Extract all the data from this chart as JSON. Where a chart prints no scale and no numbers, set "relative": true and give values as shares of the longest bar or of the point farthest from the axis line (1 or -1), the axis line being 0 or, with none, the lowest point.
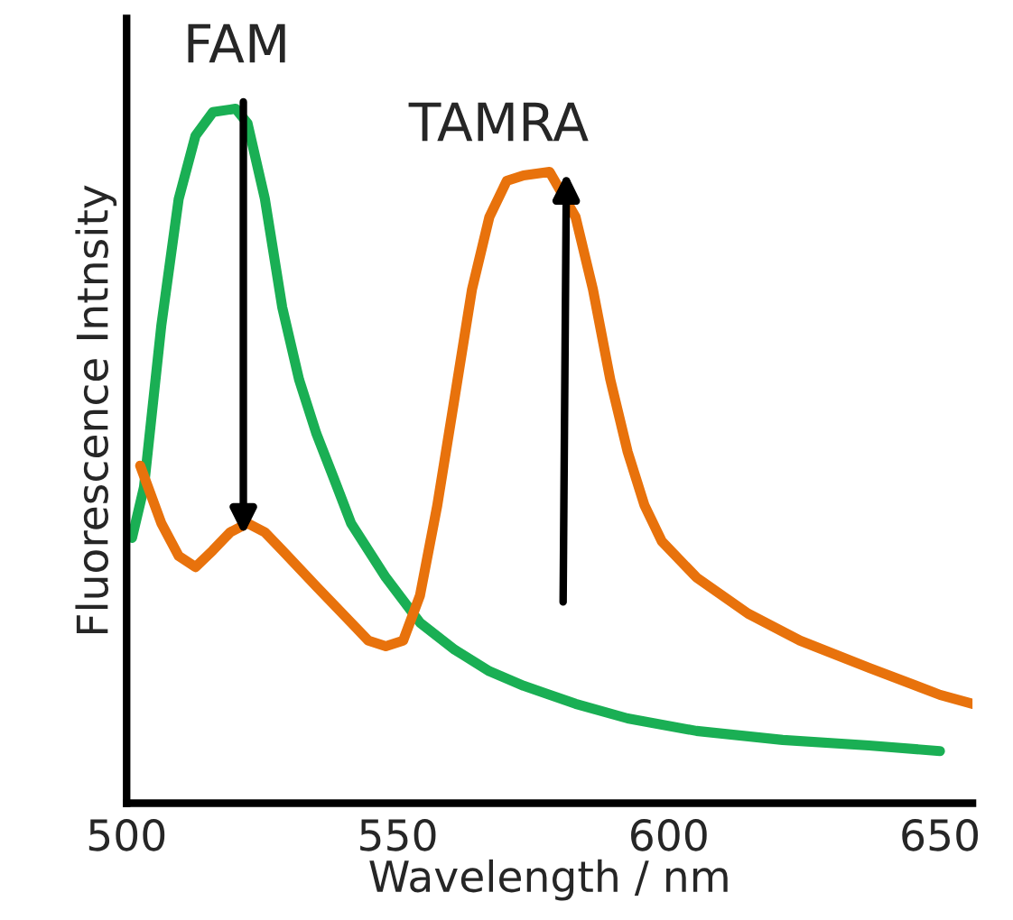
{
  "chart_data": {
    "type": "line",
    "xlabel": "Wavelength / nm",
    "ylabel": "Fluorescence Intnsity",
    "relative": true,
    "xlim": [
      500,
      656
    ],
    "xticks": [
      500,
      550,
      600,
      650
    ],
    "grid": false,
    "legend": false,
    "marker": "none",
    "line_style": "solid",
    "series": [
      {
        "name": "FAM",
        "color": "#1aaf54",
        "x": [
          501.0,
          503.2,
          506.4,
          509.6,
          512.7,
          515.9,
          520.1,
          522.3,
          525.5,
          528.7,
          531.8,
          535.0,
          538.2,
          541.4,
          547.8,
          554.1,
          560.5,
          566.9,
          573.2,
          582.8,
          592.4,
          605.1,
          621.0,
          636.9,
          650.0
        ],
        "values": [
          0.382,
          0.455,
          0.688,
          0.87,
          0.961,
          0.995,
          1.0,
          0.979,
          0.87,
          0.714,
          0.61,
          0.532,
          0.468,
          0.403,
          0.325,
          0.26,
          0.221,
          0.19,
          0.169,
          0.143,
          0.122,
          0.104,
          0.091,
          0.083,
          0.075
        ]
      },
      {
        "name": "TAMRA",
        "color": "#e8720c",
        "x": [
          502.5,
          506.4,
          509.6,
          512.7,
          515.9,
          519.1,
          522.3,
          525.5,
          528.7,
          535.0,
          541.4,
          544.6,
          547.8,
          551.0,
          554.1,
          557.3,
          560.5,
          563.7,
          566.9,
          570.1,
          573.2,
          578.0,
          582.8,
          586.0,
          589.2,
          592.4,
          595.5,
          598.7,
          605.1,
          614.6,
          624.2,
          636.9,
          650.0,
          656.0
        ],
        "values": [
          0.486,
          0.403,
          0.356,
          0.34,
          0.364,
          0.39,
          0.403,
          0.39,
          0.364,
          0.312,
          0.26,
          0.234,
          0.226,
          0.234,
          0.299,
          0.429,
          0.584,
          0.74,
          0.844,
          0.896,
          0.904,
          0.909,
          0.844,
          0.74,
          0.61,
          0.506,
          0.429,
          0.377,
          0.325,
          0.273,
          0.234,
          0.195,
          0.156,
          0.143
        ]
      }
    ]
  }
}
